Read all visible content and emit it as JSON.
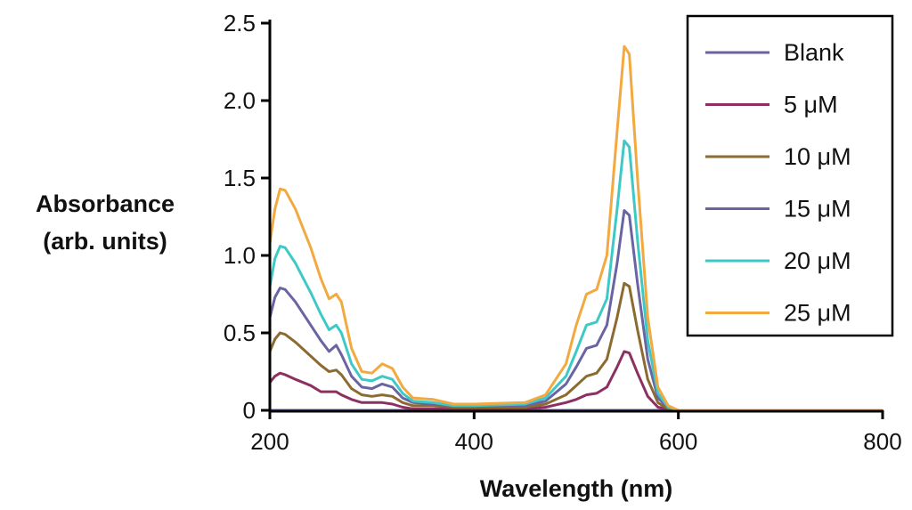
{
  "chart_data": {
    "type": "line",
    "title": "",
    "xlabel": "Wavelength (nm)",
    "ylabel": [
      "Absorbance",
      "(arb. units)"
    ],
    "xlim": [
      200,
      800
    ],
    "ylim": [
      0,
      2.5
    ],
    "xticks": [
      "200",
      "400",
      "600",
      "800"
    ],
    "yticks": [
      "0",
      "0.5",
      "1.0",
      "1.5",
      "2.0",
      "2.5"
    ],
    "grid": false,
    "legend_position": "top-right",
    "x": [
      200,
      205,
      210,
      215,
      225,
      240,
      250,
      258,
      265,
      270,
      280,
      290,
      300,
      310,
      320,
      330,
      340,
      360,
      380,
      400,
      450,
      470,
      490,
      500,
      510,
      520,
      530,
      540,
      547,
      552,
      560,
      570,
      580,
      590,
      600,
      800
    ],
    "series": [
      {
        "name": "Blank",
        "color": "#6b62a3",
        "values": [
          0,
          0,
          0,
          0,
          0,
          0,
          0,
          0,
          0,
          0,
          0,
          0,
          0,
          0,
          0,
          0,
          0,
          0,
          0,
          0,
          0,
          0,
          0,
          0,
          0,
          0,
          0,
          0,
          0,
          0,
          0,
          0,
          0,
          0,
          0,
          0
        ]
      },
      {
        "name": "5 μM",
        "color": "#8e2f62",
        "values": [
          0.18,
          0.22,
          0.24,
          0.23,
          0.2,
          0.16,
          0.12,
          0.12,
          0.12,
          0.1,
          0.07,
          0.05,
          0.05,
          0.05,
          0.04,
          0.02,
          0.01,
          0.01,
          0.01,
          0.01,
          0.01,
          0.02,
          0.05,
          0.07,
          0.1,
          0.11,
          0.15,
          0.28,
          0.38,
          0.37,
          0.24,
          0.09,
          0.02,
          0.01,
          0,
          0
        ]
      },
      {
        "name": "10 μM",
        "color": "#8c6b30",
        "values": [
          0.38,
          0.46,
          0.5,
          0.49,
          0.44,
          0.35,
          0.29,
          0.25,
          0.26,
          0.23,
          0.14,
          0.1,
          0.09,
          0.1,
          0.09,
          0.05,
          0.03,
          0.03,
          0.02,
          0.02,
          0.02,
          0.04,
          0.1,
          0.16,
          0.22,
          0.24,
          0.33,
          0.6,
          0.82,
          0.8,
          0.52,
          0.2,
          0.05,
          0.01,
          0,
          0
        ]
      },
      {
        "name": "15 μM",
        "color": "#6a64a2",
        "values": [
          0.6,
          0.73,
          0.79,
          0.78,
          0.7,
          0.55,
          0.45,
          0.38,
          0.42,
          0.36,
          0.22,
          0.15,
          0.14,
          0.17,
          0.15,
          0.08,
          0.05,
          0.04,
          0.03,
          0.03,
          0.03,
          0.06,
          0.17,
          0.28,
          0.4,
          0.42,
          0.55,
          0.95,
          1.29,
          1.26,
          0.82,
          0.33,
          0.08,
          0.02,
          0,
          0
        ]
      },
      {
        "name": "20 μM",
        "color": "#3ec9c6",
        "values": [
          0.8,
          0.98,
          1.06,
          1.05,
          0.95,
          0.76,
          0.62,
          0.52,
          0.55,
          0.5,
          0.3,
          0.2,
          0.19,
          0.22,
          0.2,
          0.11,
          0.06,
          0.05,
          0.03,
          0.03,
          0.04,
          0.08,
          0.22,
          0.38,
          0.55,
          0.57,
          0.72,
          1.3,
          1.74,
          1.7,
          1.1,
          0.45,
          0.11,
          0.02,
          0,
          0
        ]
      },
      {
        "name": "25 μM",
        "color": "#f2a93f",
        "values": [
          1.08,
          1.3,
          1.43,
          1.42,
          1.3,
          1.05,
          0.85,
          0.72,
          0.75,
          0.7,
          0.4,
          0.25,
          0.24,
          0.3,
          0.27,
          0.15,
          0.08,
          0.07,
          0.04,
          0.04,
          0.05,
          0.1,
          0.3,
          0.55,
          0.75,
          0.78,
          1.0,
          1.8,
          2.35,
          2.3,
          1.5,
          0.6,
          0.15,
          0.03,
          0,
          0
        ]
      }
    ]
  }
}
